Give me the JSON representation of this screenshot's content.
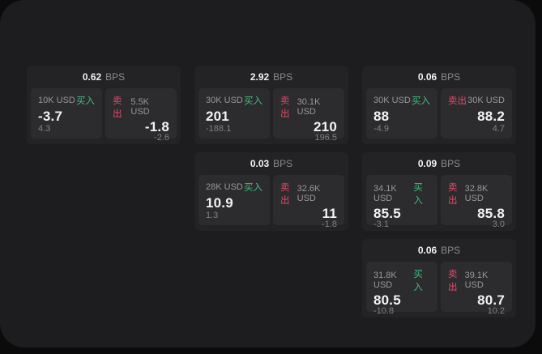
{
  "labels": {
    "bps_unit": "BPS",
    "buy": "买入",
    "sell": "卖出"
  },
  "theme": {
    "background": "#0b0b0c",
    "panel": "#1d1d1f",
    "card": "#232325",
    "tile": "#2c2c2e",
    "text_primary": "#f2f2f4",
    "text_secondary": "#98989d",
    "text_dim": "#808086",
    "buy_green": "#3fbe7e",
    "sell_red": "#e14a6b"
  },
  "cards": [
    {
      "bps": "0.62",
      "buy": {
        "amount": "10K USD",
        "price": "-3.7",
        "change": "4.3"
      },
      "sell": {
        "amount": "5.5K USD",
        "price": "-1.8",
        "change": "-2.6"
      }
    },
    {
      "bps": "2.92",
      "buy": {
        "amount": "30K USD",
        "price": "201",
        "change": "-188.1"
      },
      "sell": {
        "amount": "30.1K USD",
        "price": "210",
        "change": "196.5"
      }
    },
    {
      "bps": "0.06",
      "buy": {
        "amount": "30K USD",
        "price": "88",
        "change": "-4.9"
      },
      "sell": {
        "amount": "30K USD",
        "price": "88.2",
        "change": "4.7"
      }
    },
    {
      "bps": "0.03",
      "buy": {
        "amount": "28K USD",
        "price": "10.9",
        "change": "1.3"
      },
      "sell": {
        "amount": "32.6K USD",
        "price": "11",
        "change": "-1.8"
      }
    },
    {
      "bps": "0.09",
      "buy": {
        "amount": "34.1K USD",
        "price": "85.5",
        "change": "-3.1"
      },
      "sell": {
        "amount": "32.8K USD",
        "price": "85.8",
        "change": "3.0"
      }
    },
    {
      "bps": "0.06",
      "buy": {
        "amount": "31.8K USD",
        "price": "80.5",
        "change": "-10.8"
      },
      "sell": {
        "amount": "39.1K USD",
        "price": "80.7",
        "change": "10.2"
      }
    }
  ]
}
